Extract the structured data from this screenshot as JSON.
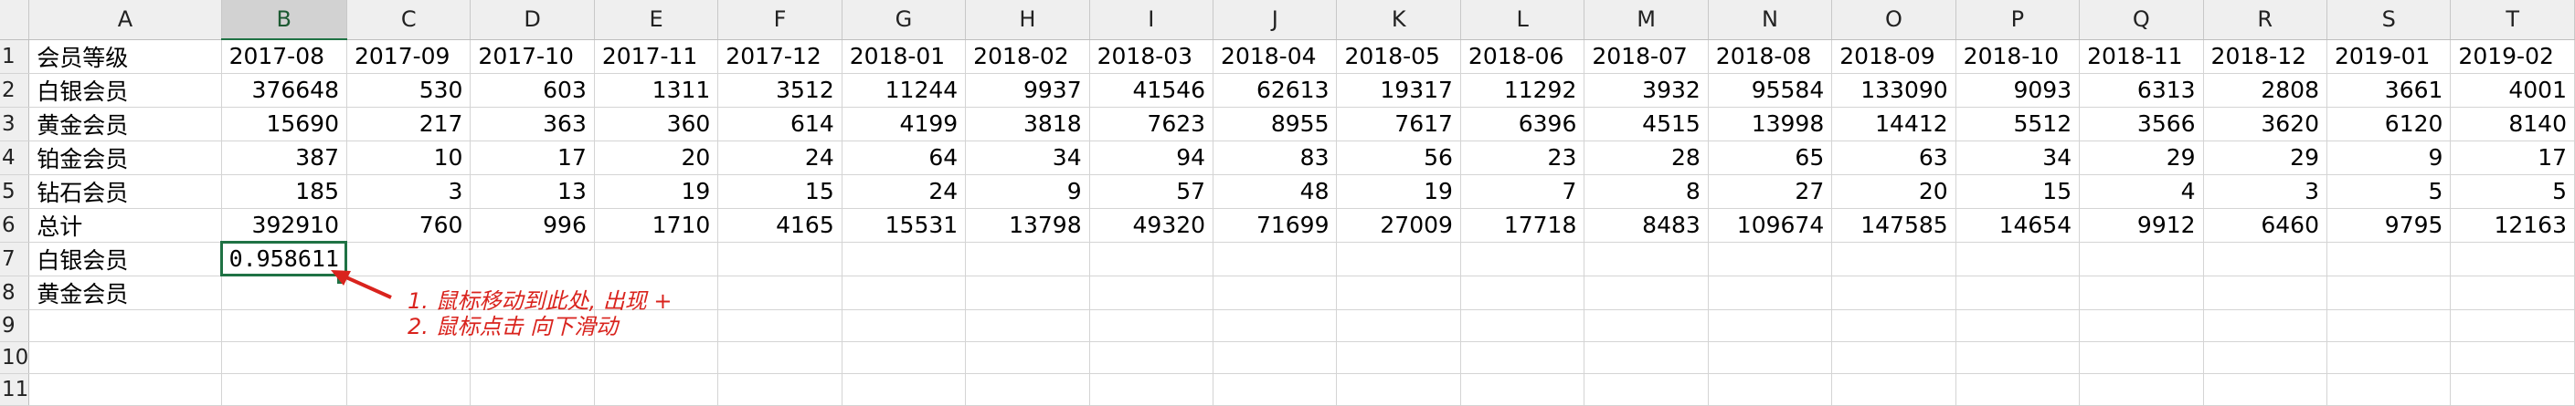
{
  "columns": [
    "A",
    "B",
    "C",
    "D",
    "E",
    "F",
    "G",
    "H",
    "I",
    "J",
    "K",
    "L",
    "M",
    "N",
    "O",
    "P",
    "Q",
    "R",
    "S",
    "T"
  ],
  "selected_column": "B",
  "row_numbers": [
    "1",
    "2",
    "3",
    "4",
    "5",
    "6",
    "7",
    "8",
    "9",
    "10",
    "11"
  ],
  "header_row": {
    "label": "会员等级",
    "months": [
      "2017-08",
      "2017-09",
      "2017-10",
      "2017-11",
      "2017-12",
      "2018-01",
      "2018-02",
      "2018-03",
      "2018-04",
      "2018-05",
      "2018-06",
      "2018-07",
      "2018-08",
      "2018-09",
      "2018-10",
      "2018-11",
      "2018-12",
      "2019-01",
      "2019-02"
    ]
  },
  "data_rows": [
    {
      "label": "白银会员",
      "values": [
        "376648",
        "530",
        "603",
        "1311",
        "3512",
        "11244",
        "9937",
        "41546",
        "62613",
        "19317",
        "11292",
        "3932",
        "95584",
        "133090",
        "9093",
        "6313",
        "2808",
        "3661",
        "4001"
      ]
    },
    {
      "label": "黄金会员",
      "values": [
        "15690",
        "217",
        "363",
        "360",
        "614",
        "4199",
        "3818",
        "7623",
        "8955",
        "7617",
        "6396",
        "4515",
        "13998",
        "14412",
        "5512",
        "3566",
        "3620",
        "6120",
        "8140"
      ]
    },
    {
      "label": "铂金会员",
      "values": [
        "387",
        "10",
        "17",
        "20",
        "24",
        "64",
        "34",
        "94",
        "83",
        "56",
        "23",
        "28",
        "65",
        "63",
        "34",
        "29",
        "29",
        "9",
        "17"
      ]
    },
    {
      "label": "钻石会员",
      "values": [
        "185",
        "3",
        "13",
        "19",
        "15",
        "24",
        "9",
        "57",
        "48",
        "19",
        "7",
        "8",
        "27",
        "20",
        "15",
        "4",
        "3",
        "5",
        "5"
      ]
    },
    {
      "label": "总计",
      "values": [
        "392910",
        "760",
        "996",
        "1710",
        "4165",
        "15531",
        "13798",
        "49320",
        "71699",
        "27009",
        "17718",
        "8483",
        "109674",
        "147585",
        "14654",
        "9912",
        "6460",
        "9795",
        "12163"
      ]
    }
  ],
  "extra_rows": [
    {
      "label": "白银会员",
      "active_value": "0.958611"
    },
    {
      "label": "黄金会员"
    }
  ],
  "annotation": {
    "line1": "1. 鼠标移动到此处, 出现 +",
    "line2": "2. 鼠标点击 向下滑动",
    "color": "#d9231d"
  },
  "colors": {
    "header_bg": "#efefef",
    "selection_green": "#1f7244",
    "gridline": "#d4d4d4"
  }
}
